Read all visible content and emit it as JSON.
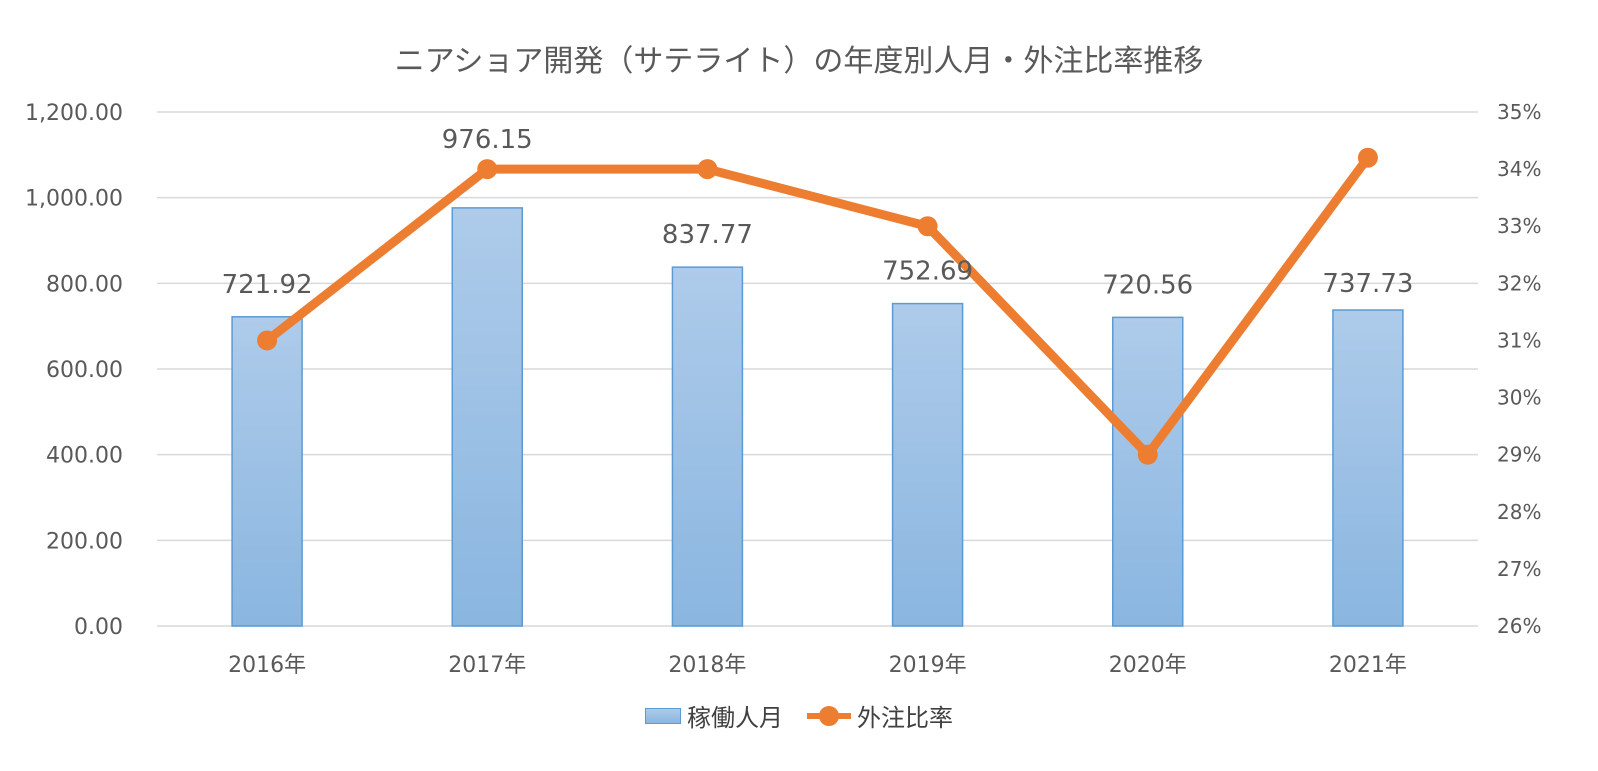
{
  "chart_data": {
    "type": "bar",
    "title": "ニアショア開発（サテライト）の年度別人月・外注比率推移",
    "categories": [
      "2016年",
      "2017年",
      "2018年",
      "2019年",
      "2020年",
      "2021年"
    ],
    "series": [
      {
        "name": "稼働人月",
        "type": "bar",
        "axis": "left",
        "values": [
          721.92,
          976.15,
          837.77,
          752.69,
          720.56,
          737.73
        ],
        "data_labels": [
          "721.92",
          "976.15",
          "837.77",
          "752.69",
          "720.56",
          "737.73"
        ],
        "color": "#9dc3e6",
        "border_color": "#5b9bd5"
      },
      {
        "name": "外注比率",
        "type": "line",
        "axis": "right",
        "values": [
          0.31,
          0.34,
          0.34,
          0.33,
          0.29,
          0.342
        ],
        "color": "#ed7d31"
      }
    ],
    "y_left": {
      "ylim": [
        0,
        1200
      ],
      "ticks": [
        0,
        200,
        400,
        600,
        800,
        1000,
        1200
      ],
      "tick_labels": [
        "0.00",
        "200.00",
        "400.00",
        "600.00",
        "800.00",
        "1,000.00",
        "1,200.00"
      ]
    },
    "y_right": {
      "ylim": [
        0.26,
        0.35
      ],
      "ticks": [
        0.26,
        0.27,
        0.28,
        0.29,
        0.3,
        0.31,
        0.32,
        0.33,
        0.34,
        0.35
      ],
      "tick_labels": [
        "26%",
        "27%",
        "28%",
        "29%",
        "30%",
        "31%",
        "32%",
        "33%",
        "34%",
        "35%"
      ]
    },
    "grid": true,
    "legend_position": "bottom",
    "colors": {
      "gridline": "#d9d9d9",
      "axis_text": "#595959"
    }
  }
}
